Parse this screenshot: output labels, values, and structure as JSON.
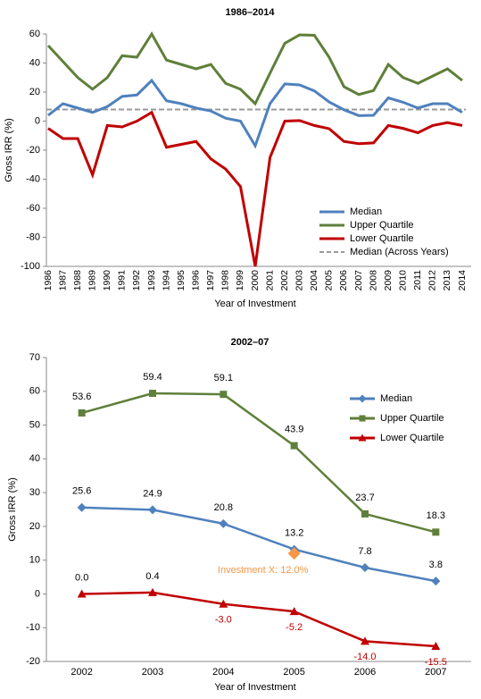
{
  "chart_data": [
    {
      "type": "line",
      "title": "1986–2014",
      "x_label": "Year of Investment",
      "y_label": "Gross IRR (%)",
      "categories": [
        "1986",
        "1987",
        "1988",
        "1989",
        "1990",
        "1991",
        "1992",
        "1993",
        "1994",
        "1995",
        "1996",
        "1997",
        "1998",
        "1999",
        "2000",
        "2001",
        "2002",
        "2003",
        "2004",
        "2005",
        "2006",
        "2007",
        "2008",
        "2009",
        "2010",
        "2011",
        "2012",
        "2013",
        "2014"
      ],
      "series": [
        {
          "name": "Median",
          "color": "#4f81bd",
          "values": [
            4,
            12,
            9,
            6,
            10,
            17,
            18,
            28,
            14,
            12,
            9,
            7,
            2,
            0,
            -17,
            12,
            25.6,
            24.9,
            20.8,
            13.2,
            7.8,
            3.8,
            4,
            16,
            13,
            9,
            12,
            12,
            6
          ]
        },
        {
          "name": "Upper Quartile",
          "color": "#5f7f3a",
          "values": [
            52,
            41,
            30,
            22,
            30,
            45,
            44,
            60,
            42,
            39,
            36,
            39,
            26,
            22,
            12,
            33,
            53.6,
            59.4,
            59.1,
            43.9,
            23.7,
            18.3,
            21,
            39,
            30,
            26,
            31,
            36,
            28
          ]
        },
        {
          "name": "Lower Quartile",
          "color": "#c00000",
          "values": [
            -5,
            -12,
            -12,
            -37,
            -3,
            -4,
            0,
            6,
            -18,
            -16,
            -14,
            -26,
            -33,
            -45,
            -100,
            -25,
            0,
            0.4,
            -3,
            -5.2,
            -14,
            -15.5,
            -15,
            -3,
            -5,
            -8,
            -3,
            -1,
            -3
          ]
        }
      ],
      "reference_line": {
        "name": "Median (Across Years)",
        "value": 8,
        "color": "#999999"
      },
      "ylim": [
        -100,
        60
      ],
      "yticks": [
        -100,
        -80,
        -60,
        -40,
        -20,
        0,
        20,
        40,
        60
      ],
      "grid": false
    },
    {
      "type": "line",
      "title": "2002–07",
      "x_label": "Year of Investment",
      "y_label": "Gross IRR (%)",
      "categories": [
        "2002",
        "2003",
        "2004",
        "2005",
        "2006",
        "2007"
      ],
      "series": [
        {
          "name": "Median",
          "color": "#4f81bd",
          "marker": "diamond",
          "values": [
            25.6,
            24.9,
            20.8,
            13.2,
            7.8,
            3.8
          ],
          "value_labels": [
            "25.6",
            "24.9",
            "20.8",
            "13.2",
            "7.8",
            "3.8"
          ]
        },
        {
          "name": "Upper Quartile",
          "color": "#5f7f3a",
          "marker": "square",
          "values": [
            53.6,
            59.4,
            59.1,
            43.9,
            23.7,
            18.3
          ],
          "value_labels": [
            "53.6",
            "59.4",
            "59.1",
            "43.9",
            "23.7",
            "18.3"
          ]
        },
        {
          "name": "Lower Quartile",
          "color": "#c00000",
          "marker": "triangle",
          "values": [
            0,
            0.4,
            -3,
            -5.2,
            -14,
            -15.5
          ],
          "value_labels": [
            "0.0",
            "0.4",
            "-3.0",
            "-5.2",
            "-14.0",
            "-15.5"
          ]
        }
      ],
      "annotation": {
        "text": "Investment X: 12.0%",
        "category": "2005",
        "value": 12,
        "color": "#f79646"
      },
      "ylim": [
        -20,
        70
      ],
      "yticks": [
        -20,
        -10,
        0,
        10,
        20,
        30,
        40,
        50,
        60,
        70
      ],
      "grid": false
    }
  ]
}
